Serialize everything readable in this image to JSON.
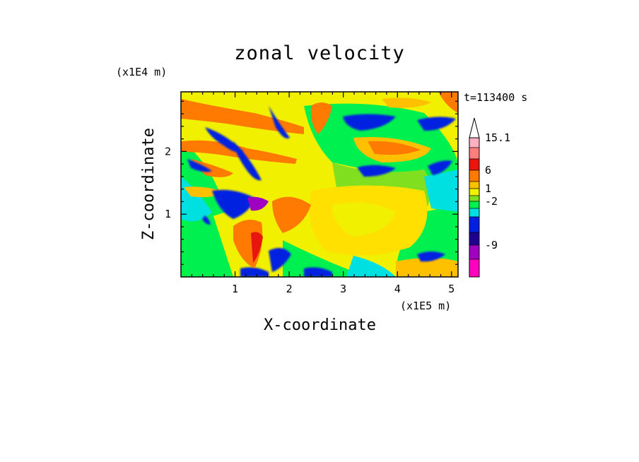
{
  "chart_data": {
    "type": "heatmap",
    "title": "zonal velocity",
    "xlabel": "X-coordinate",
    "ylabel": "Z-coordinate",
    "x_multiplier": "(x1E5 m)",
    "y_multiplier": "(x1E4 m)",
    "time_label": "t=113400 s",
    "xlim": [
      0,
      5.12
    ],
    "ylim": [
      0,
      2.95
    ],
    "x_ticks": [
      1,
      2,
      3,
      4,
      5
    ],
    "y_ticks": [
      1,
      2
    ],
    "x_tick_labels": [
      "1",
      "2",
      "3",
      "4",
      "5"
    ],
    "y_tick_labels": [
      "1",
      "2"
    ],
    "colorbar": {
      "levels": [
        "",
        "15.1",
        "",
        "6",
        "",
        "1",
        "",
        "-2",
        "",
        "",
        "-9",
        ""
      ],
      "colors": [
        "#ffb0c0",
        "#ff7f7f",
        "#e8160c",
        "#ff7a00",
        "#ffc000",
        "#f0f000",
        "#80e020",
        "#00f050",
        "#00e0e0",
        "#0020e0",
        "#20008f",
        "#a000c0",
        "#ff00c0"
      ],
      "label_values": [
        "15.1",
        "6",
        "1",
        "-2",
        "-9"
      ]
    }
  }
}
